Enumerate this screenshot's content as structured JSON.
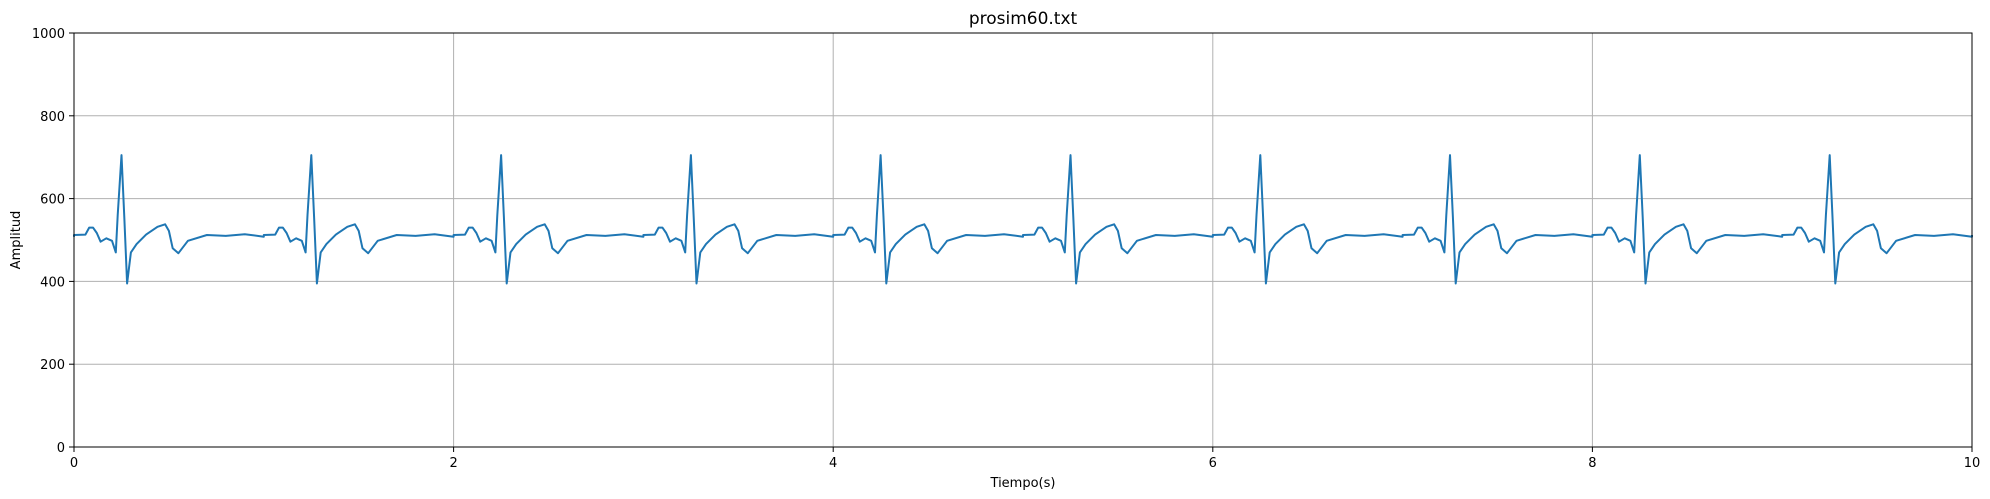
{
  "chart_data": {
    "type": "line",
    "title": "prosim60.txt",
    "xlabel": "Tiempo(s)",
    "ylabel": "Amplitud",
    "xlim": [
      0,
      10
    ],
    "ylim": [
      0,
      1000
    ],
    "xticks": [
      0,
      2,
      4,
      6,
      8,
      10
    ],
    "yticks": [
      0,
      200,
      400,
      600,
      800,
      1000
    ],
    "grid": true,
    "series": [
      {
        "color": "#1f77b4",
        "description": "periodic ECG-like waveform, period 1.0 s, baseline ~510",
        "beat_period": 1.0,
        "first_r_peak": 0.25,
        "one_beat_points": {
          "t": [
            0.0,
            0.06,
            0.08,
            0.1,
            0.12,
            0.14,
            0.17,
            0.2,
            0.22,
            0.23,
            0.25,
            0.265,
            0.28,
            0.3,
            0.33,
            0.38,
            0.44,
            0.48,
            0.5,
            0.52,
            0.55,
            0.6,
            0.7,
            0.8,
            0.9,
            1.0
          ],
          "y": [
            510,
            515,
            528,
            532,
            515,
            498,
            502,
            500,
            470,
            560,
            705,
            555,
            395,
            470,
            490,
            515,
            530,
            540,
            520,
            480,
            468,
            500,
            510,
            512,
            512,
            510
          ]
        }
      }
    ]
  }
}
